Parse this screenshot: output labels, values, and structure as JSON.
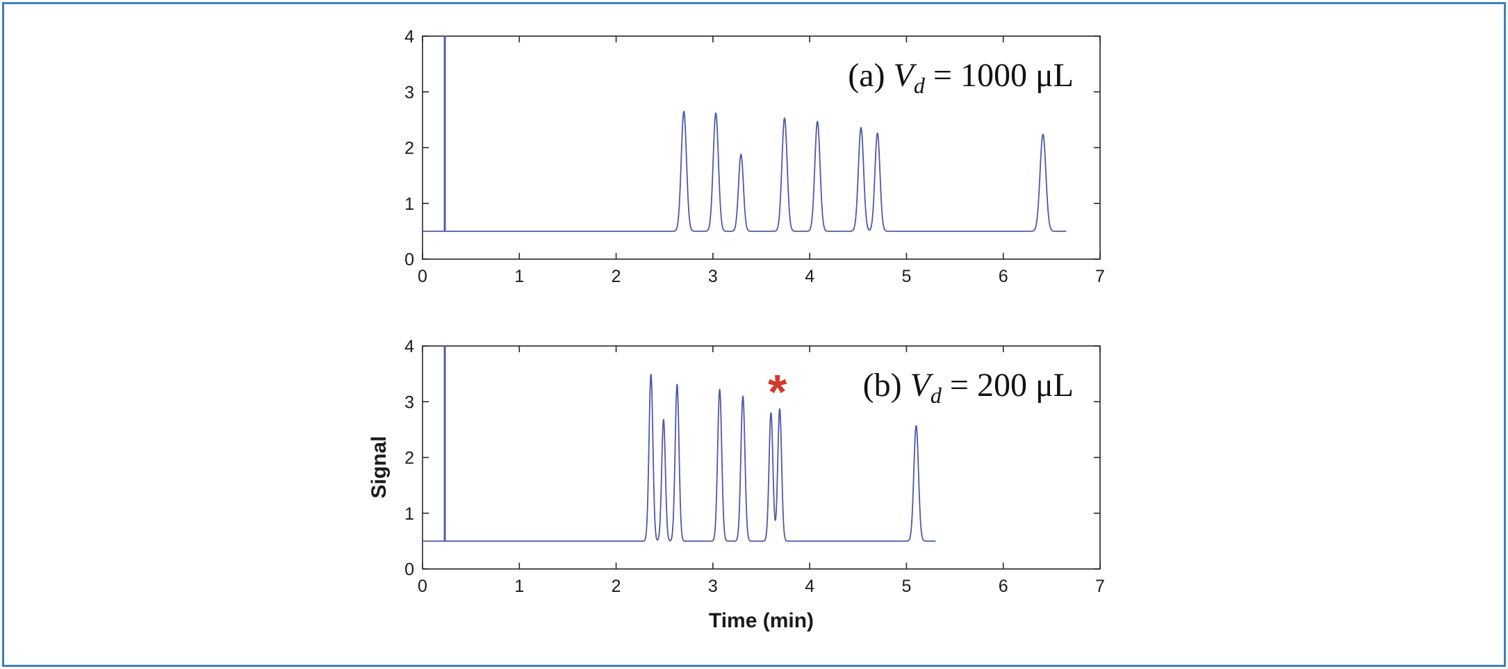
{
  "chart_data": [
    {
      "type": "line",
      "panel": "a",
      "annotation": {
        "prefix": "(a) ",
        "var": "V",
        "sub": "d",
        "suffix": " = 1000 μL"
      },
      "xlabel": "",
      "ylabel": "",
      "xlim": [
        0,
        7
      ],
      "ylim": [
        0,
        4
      ],
      "xticks": [
        "0",
        "1",
        "2",
        "3",
        "4",
        "5",
        "6",
        "7"
      ],
      "yticks": [
        "0",
        "1",
        "2",
        "3",
        "4"
      ],
      "baseline": 0.5,
      "trace_end": 6.65,
      "injection_spike": {
        "x": 0.23,
        "y_top": 4
      },
      "peaks": [
        {
          "x": 2.7,
          "height": 2.65,
          "width": 0.027
        },
        {
          "x": 3.03,
          "height": 2.62,
          "width": 0.027
        },
        {
          "x": 3.29,
          "height": 1.88,
          "width": 0.025
        },
        {
          "x": 3.74,
          "height": 2.53,
          "width": 0.027
        },
        {
          "x": 4.08,
          "height": 2.47,
          "width": 0.027
        },
        {
          "x": 4.53,
          "height": 2.36,
          "width": 0.027
        },
        {
          "x": 4.7,
          "height": 2.26,
          "width": 0.026
        },
        {
          "x": 6.41,
          "height": 2.24,
          "width": 0.03
        }
      ],
      "line_color": "#4e58a8"
    },
    {
      "type": "line",
      "panel": "b",
      "annotation": {
        "prefix": "(b) ",
        "var": "V",
        "sub": "d",
        "suffix": " = 200 μL"
      },
      "marker": {
        "symbol": "*",
        "color": "#d23a2a",
        "x": 3.58
      },
      "xlabel": "Time (min)",
      "ylabel": "Signal",
      "xlim": [
        0,
        7
      ],
      "ylim": [
        0,
        4
      ],
      "xticks": [
        "0",
        "1",
        "2",
        "3",
        "4",
        "5",
        "6",
        "7"
      ],
      "yticks": [
        "0",
        "1",
        "2",
        "3",
        "4"
      ],
      "baseline": 0.5,
      "trace_end": 5.3,
      "injection_spike": {
        "x": 0.23,
        "y_top": 4
      },
      "peaks": [
        {
          "x": 2.36,
          "height": 3.49,
          "width": 0.02
        },
        {
          "x": 2.49,
          "height": 2.68,
          "width": 0.019
        },
        {
          "x": 2.63,
          "height": 3.31,
          "width": 0.02
        },
        {
          "x": 3.07,
          "height": 3.22,
          "width": 0.021
        },
        {
          "x": 3.31,
          "height": 3.1,
          "width": 0.021
        },
        {
          "x": 3.6,
          "height": 2.8,
          "width": 0.02
        },
        {
          "x": 3.69,
          "height": 2.87,
          "width": 0.02
        },
        {
          "x": 5.1,
          "height": 2.57,
          "width": 0.024
        }
      ],
      "line_color": "#4e58a8"
    }
  ]
}
